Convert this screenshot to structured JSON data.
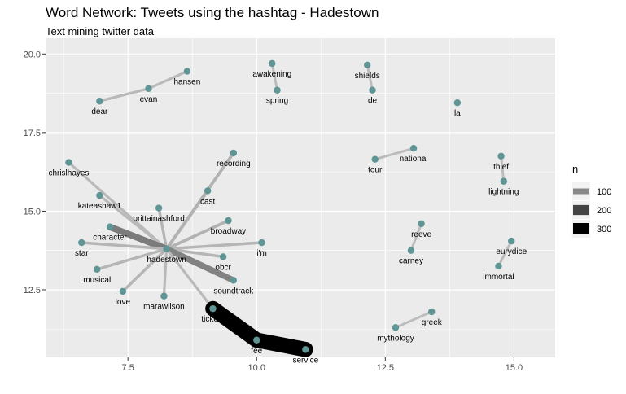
{
  "title": "Word Network: Tweets using the hashtag - Hadestown",
  "subtitle": "Text mining twitter data",
  "chart_data": {
    "type": "network",
    "xlim": [
      5.9,
      15.8
    ],
    "ylim": [
      10.35,
      20.5
    ],
    "x_ticks": [
      7.5,
      10.0,
      12.5,
      15.0
    ],
    "y_ticks": [
      12.5,
      15.0,
      17.5,
      20.0
    ],
    "x_tick_labels": [
      "7.5",
      "10.0",
      "12.5",
      "15.0"
    ],
    "y_tick_labels": [
      "12.5",
      "15.0",
      "17.5",
      "20.0"
    ],
    "grid": true,
    "node_color": "#5f9595",
    "nodes": [
      {
        "id": "dear",
        "x": 6.95,
        "y": 18.5
      },
      {
        "id": "evan",
        "x": 7.9,
        "y": 18.9
      },
      {
        "id": "hansen",
        "x": 8.65,
        "y": 19.45
      },
      {
        "id": "awakening",
        "x": 10.3,
        "y": 19.7
      },
      {
        "id": "spring",
        "x": 10.4,
        "y": 18.85
      },
      {
        "id": "shields",
        "x": 12.15,
        "y": 19.65
      },
      {
        "id": "de",
        "x": 12.25,
        "y": 18.85
      },
      {
        "id": "la",
        "x": 13.9,
        "y": 18.45
      },
      {
        "id": "chrislhayes",
        "x": 6.35,
        "y": 16.55
      },
      {
        "id": "recording",
        "x": 9.55,
        "y": 16.85
      },
      {
        "id": "tour",
        "x": 12.3,
        "y": 16.65
      },
      {
        "id": "national",
        "x": 13.05,
        "y": 17.0
      },
      {
        "id": "thief",
        "x": 14.75,
        "y": 16.75
      },
      {
        "id": "lightning",
        "x": 14.8,
        "y": 15.95
      },
      {
        "id": "kateashaw1",
        "x": 6.95,
        "y": 15.5
      },
      {
        "id": "cast",
        "x": 9.05,
        "y": 15.65
      },
      {
        "id": "brittainashford",
        "x": 8.1,
        "y": 15.1
      },
      {
        "id": "broadway",
        "x": 9.45,
        "y": 14.7
      },
      {
        "id": "reeve",
        "x": 13.2,
        "y": 14.6
      },
      {
        "id": "character",
        "x": 7.15,
        "y": 14.5
      },
      {
        "id": "star",
        "x": 6.6,
        "y": 14.0
      },
      {
        "id": "i'm",
        "x": 10.1,
        "y": 14.0
      },
      {
        "id": "eurydice",
        "x": 14.95,
        "y": 14.05
      },
      {
        "id": "hadestown",
        "x": 8.25,
        "y": 13.8
      },
      {
        "id": "carney",
        "x": 13.0,
        "y": 13.75
      },
      {
        "id": "obcr",
        "x": 9.35,
        "y": 13.55
      },
      {
        "id": "musical",
        "x": 6.9,
        "y": 13.15
      },
      {
        "id": "immortal",
        "x": 14.7,
        "y": 13.25
      },
      {
        "id": "soundtrack",
        "x": 9.55,
        "y": 12.8
      },
      {
        "id": "love",
        "x": 7.4,
        "y": 12.45
      },
      {
        "id": "marawilson",
        "x": 8.2,
        "y": 12.3
      },
      {
        "id": "tickets",
        "x": 9.15,
        "y": 11.9
      },
      {
        "id": "greek",
        "x": 13.4,
        "y": 11.8
      },
      {
        "id": "mythology",
        "x": 12.7,
        "y": 11.3
      },
      {
        "id": "fee",
        "x": 10.0,
        "y": 10.9
      },
      {
        "id": "service",
        "x": 10.95,
        "y": 10.6
      }
    ],
    "edges": [
      {
        "from": "dear",
        "to": "evan",
        "n": 30
      },
      {
        "from": "evan",
        "to": "hansen",
        "n": 30
      },
      {
        "from": "spring",
        "to": "awakening",
        "n": 25
      },
      {
        "from": "shields",
        "to": "de",
        "n": 25
      },
      {
        "from": "tour",
        "to": "national",
        "n": 25
      },
      {
        "from": "thief",
        "to": "lightning",
        "n": 25
      },
      {
        "from": "reeve",
        "to": "carney",
        "n": 25
      },
      {
        "from": "eurydice",
        "to": "immortal",
        "n": 25
      },
      {
        "from": "greek",
        "to": "mythology",
        "n": 25
      },
      {
        "from": "chrislhayes",
        "to": "hadestown",
        "n": 30
      },
      {
        "from": "kateashaw1",
        "to": "hadestown",
        "n": 30
      },
      {
        "from": "recording",
        "to": "hadestown",
        "n": 40
      },
      {
        "from": "cast",
        "to": "hadestown",
        "n": 40
      },
      {
        "from": "brittainashford",
        "to": "hadestown",
        "n": 35
      },
      {
        "from": "broadway",
        "to": "hadestown",
        "n": 40
      },
      {
        "from": "character",
        "to": "hadestown",
        "n": 120
      },
      {
        "from": "star",
        "to": "hadestown",
        "n": 35
      },
      {
        "from": "i'm",
        "to": "hadestown",
        "n": 35
      },
      {
        "from": "obcr",
        "to": "hadestown",
        "n": 35
      },
      {
        "from": "musical",
        "to": "hadestown",
        "n": 35
      },
      {
        "from": "soundtrack",
        "to": "hadestown",
        "n": 110
      },
      {
        "from": "love",
        "to": "hadestown",
        "n": 35
      },
      {
        "from": "marawilson",
        "to": "hadestown",
        "n": 30
      },
      {
        "from": "tickets",
        "to": "hadestown",
        "n": 30
      },
      {
        "from": "tickets",
        "to": "fee",
        "n": 320
      },
      {
        "from": "fee",
        "to": "service",
        "n": 320
      }
    ],
    "legend": {
      "title": "n",
      "position": "right",
      "entries": [
        {
          "label": "100",
          "n": 100
        },
        {
          "label": "200",
          "n": 200
        },
        {
          "label": "300",
          "n": 300
        }
      ]
    }
  }
}
